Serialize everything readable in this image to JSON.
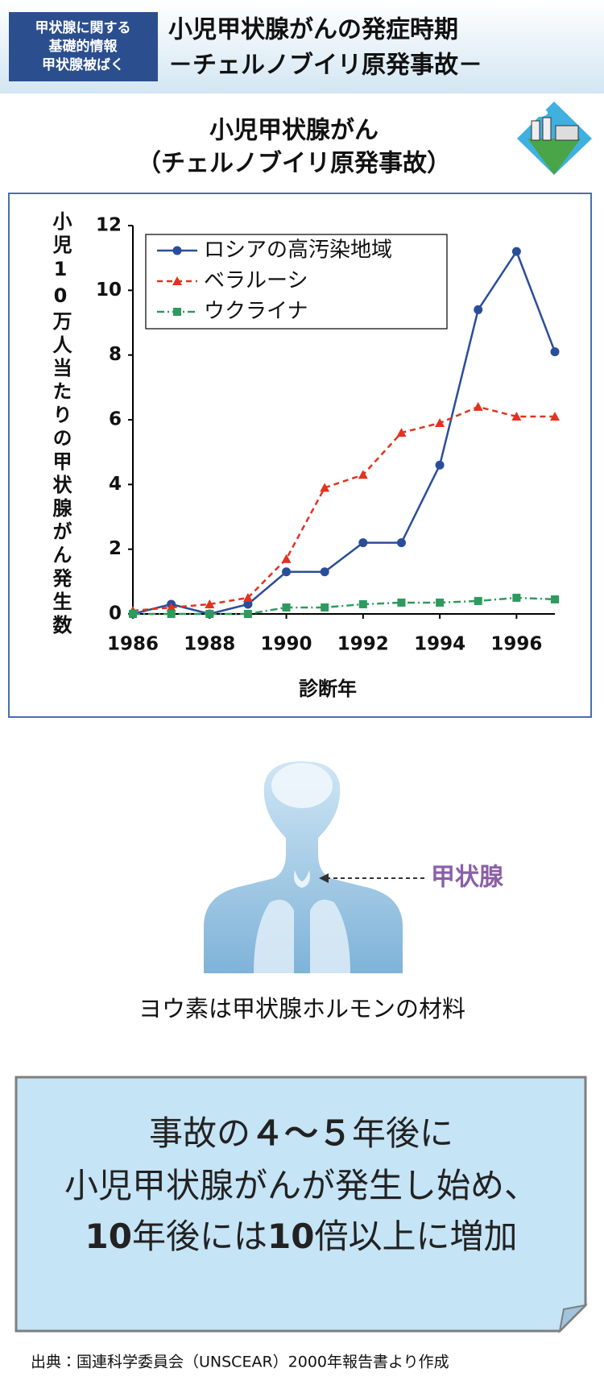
{
  "header": {
    "badge": [
      "甲状腺に関する",
      "基礎的情報",
      "甲状腺被ばく"
    ],
    "title": [
      "小児甲状腺がんの発症時期",
      "－チェルノブイリ原発事故－"
    ]
  },
  "chart_data": {
    "type": "line",
    "title": "小児甲状腺がん",
    "subtitle": "（チェルノブイリ原発事故）",
    "y_label": "小児10万人当たりの甲状腺がん発生数",
    "x_label": "診断年",
    "x": [
      1986,
      1987,
      1988,
      1989,
      1990,
      1991,
      1992,
      1993,
      1994,
      1995,
      1996,
      1997
    ],
    "series": [
      {
        "name": "ロシアの高汚染地域",
        "color": "#2a4d9b",
        "marker": "circle",
        "dash": "solid",
        "values": [
          0,
          0.3,
          0,
          0.3,
          1.3,
          1.3,
          2.2,
          2.2,
          4.6,
          9.4,
          11.2,
          8.1
        ]
      },
      {
        "name": "ベラルーシ",
        "color": "#e3321f",
        "marker": "triangle",
        "dash": "dashed",
        "values": [
          0.1,
          0.2,
          0.3,
          0.5,
          1.7,
          3.9,
          4.3,
          5.6,
          5.9,
          6.4,
          6.1,
          6.1
        ]
      },
      {
        "name": "ウクライナ",
        "color": "#2e9a5e",
        "marker": "square",
        "dash": "dashdot",
        "values": [
          0,
          0,
          0,
          0,
          0.2,
          0.2,
          0.3,
          0.35,
          0.35,
          0.4,
          0.5,
          0.45
        ]
      }
    ],
    "xlim": [
      1986,
      1997
    ],
    "xticks": [
      1986,
      1988,
      1990,
      1992,
      1994,
      1996
    ],
    "ylim": [
      0,
      12
    ],
    "yticks": [
      0,
      2,
      4,
      6,
      8,
      10,
      12
    ],
    "legend": "upper-left",
    "grid": false
  },
  "illustration": {
    "label": "甲状腺",
    "caption": "ヨウ素は甲状腺ホルモンの材料"
  },
  "callout": {
    "lines": [
      [
        {
          "text": "事故の",
          "bold": false
        },
        {
          "text": "４～５",
          "bold": true
        },
        {
          "text": "年後に",
          "bold": false
        }
      ],
      [
        {
          "text": "小児甲状腺がんが発生し始め、",
          "bold": false
        }
      ],
      [
        {
          "text": "10",
          "bold": true
        },
        {
          "text": "年後には",
          "bold": false
        },
        {
          "text": "10",
          "bold": true
        },
        {
          "text": "倍以上に増加",
          "bold": false
        }
      ]
    ]
  },
  "source": "出典：国連科学委員会（UNSCEAR）2000年報告書より作成"
}
